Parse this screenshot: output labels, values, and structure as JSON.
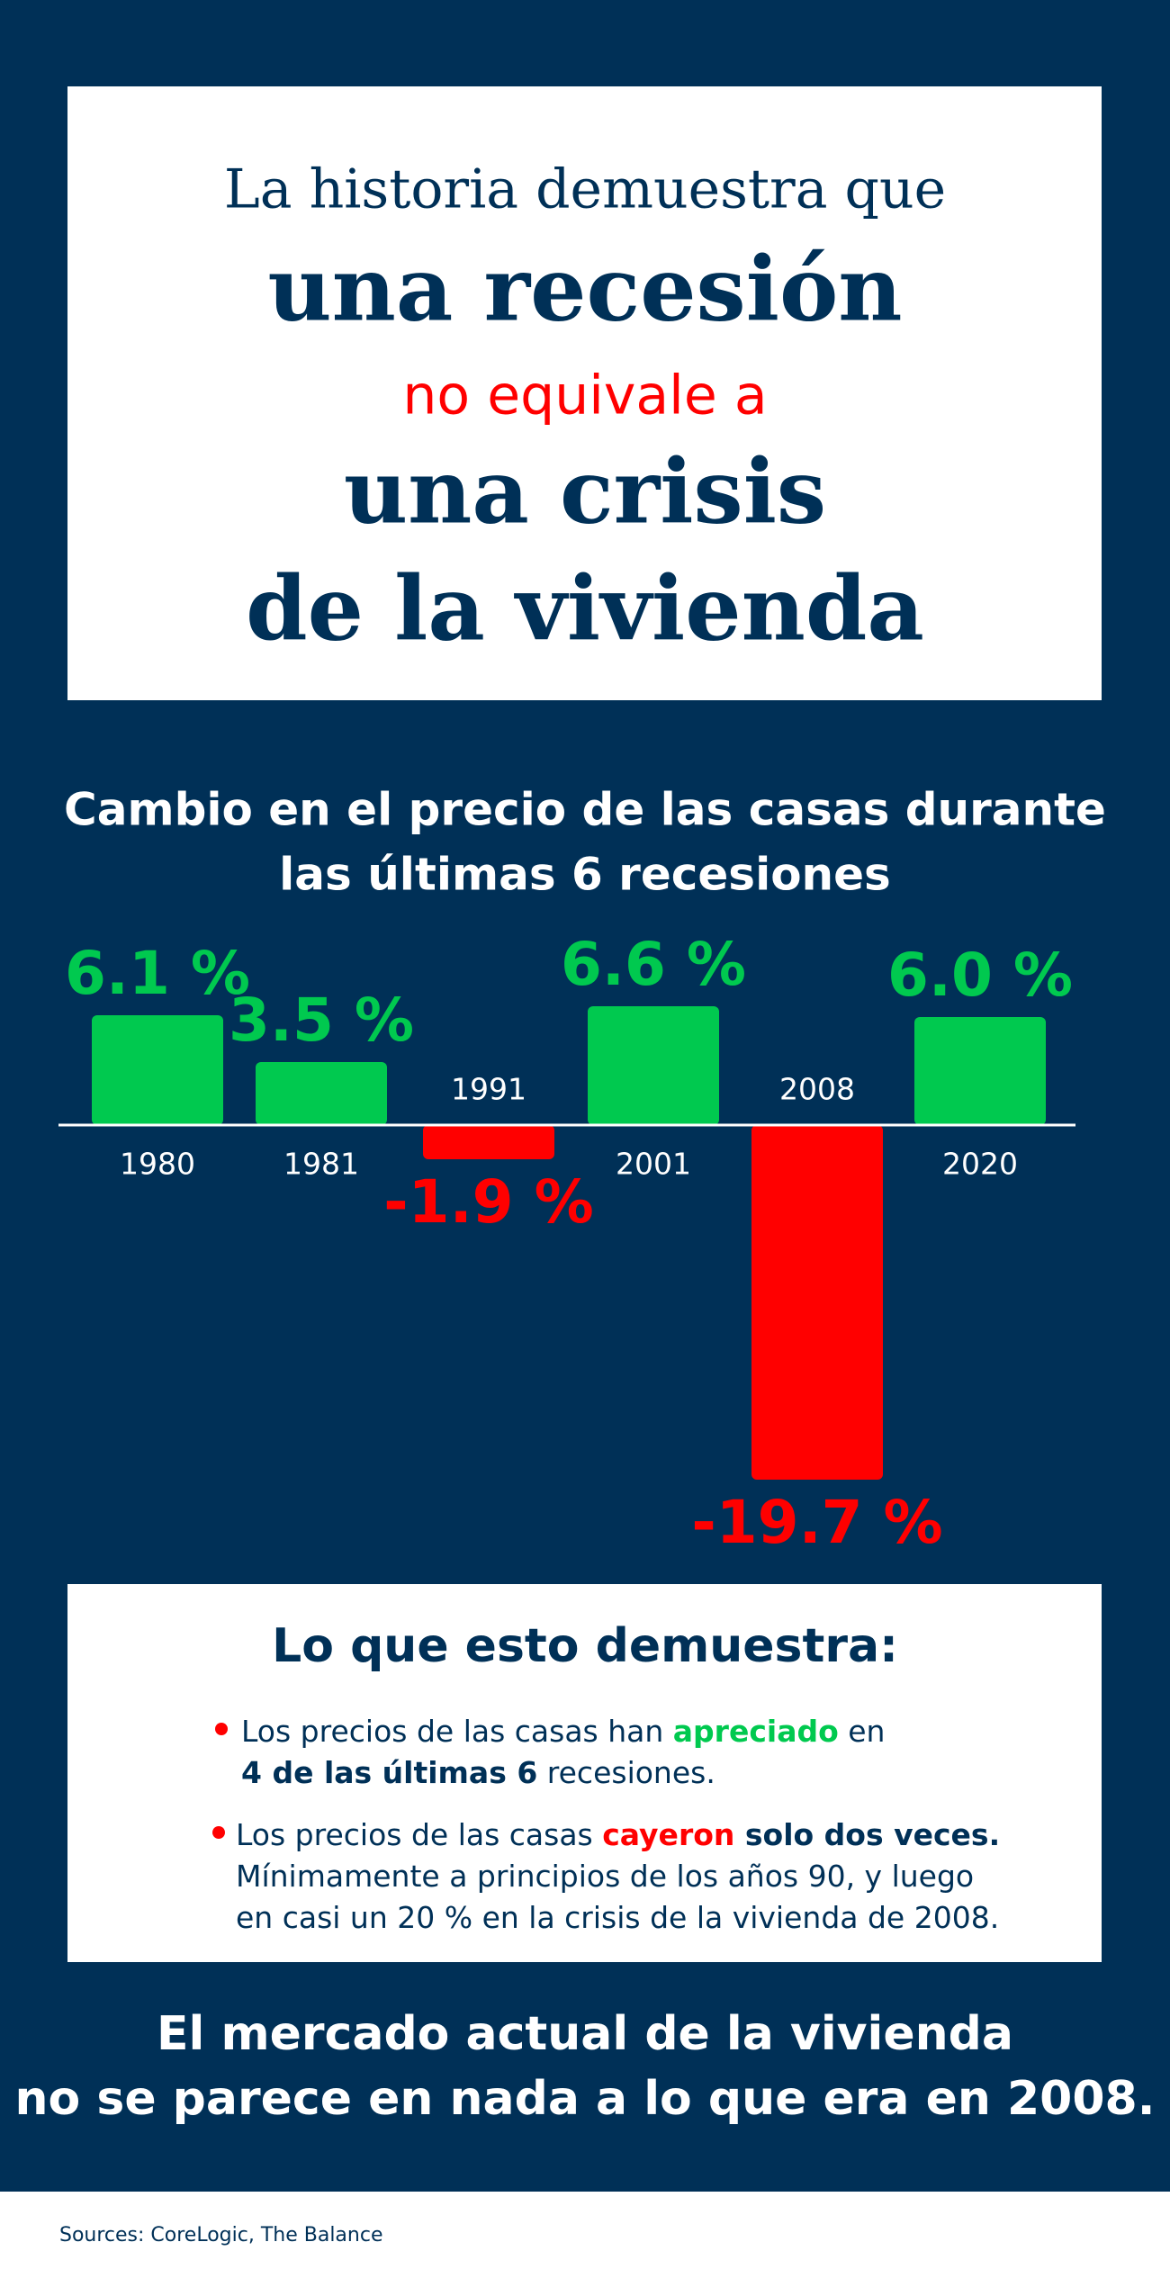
{
  "headline": [
    "La historia demuestra que",
    "una recesión",
    "no equivale a",
    "una crisis",
    "de la vivienda"
  ],
  "chart_data": {
    "type": "bar",
    "title": [
      "Cambio en el precio de las casas durante",
      "las últimas 6 recesiones"
    ],
    "categories": [
      "1980",
      "1981",
      "1991",
      "2001",
      "2008",
      "2020"
    ],
    "values": [
      6.1,
      3.5,
      -1.9,
      6.6,
      -19.7,
      6.0
    ],
    "value_labels": [
      "6.1 %",
      "3.5 %",
      "-1.9 %",
      "6.6 %",
      "-19.7 %",
      "6.0 %"
    ],
    "colors": {
      "positive": "#00c94f",
      "negative": "#ff0000"
    }
  },
  "takeaways": {
    "heading": "Lo que esto demuestra:",
    "bullets": [
      [
        [
          {
            "text": "Los precios de las casas han ",
            "style": "normal"
          },
          {
            "text": "apreciado",
            "style": "green"
          },
          {
            "text": " en",
            "style": "normal"
          }
        ],
        [
          {
            "text": "4 de las últimas 6",
            "style": "bold"
          },
          {
            "text": " recesiones.",
            "style": "normal"
          }
        ]
      ],
      [
        [
          {
            "text": "Los precios de las casas ",
            "style": "normal"
          },
          {
            "text": "cayeron",
            "style": "red"
          },
          {
            "text": " solo dos veces.",
            "style": "bold"
          }
        ],
        [
          {
            "text": "Mínimamente a principios de los años 90, y luego",
            "style": "normal"
          }
        ],
        [
          {
            "text": "en casi un 20 % en la crisis de la vivienda de 2008.",
            "style": "normal"
          }
        ]
      ]
    ]
  },
  "conclusion": [
    "El mercado actual de la vivienda",
    "no se parece en nada a lo que era en 2008."
  ],
  "sources": "Sources: CoreLogic, The Balance"
}
